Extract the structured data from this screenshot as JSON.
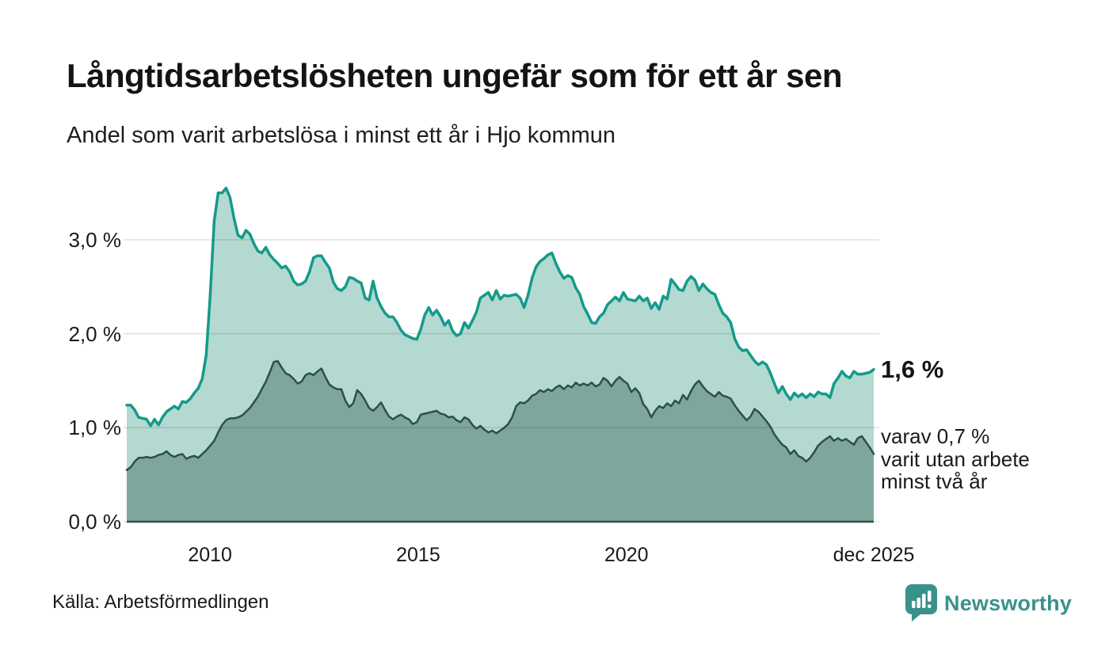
{
  "header": {
    "title": "Långtidsarbetslösheten ungefär som för ett år sen",
    "subtitle": "Andel som varit arbetslösa i minst ett år i Hjo kommun"
  },
  "chart_data": {
    "type": "area",
    "title": "Långtidsarbetslösheten ungefär som för ett år sen",
    "subtitle": "Andel som varit arbetslösa i minst ett år i Hjo kommun",
    "unit": "%",
    "x_start_year": 2008.0,
    "x_end_year": 2025.94,
    "ylim": [
      0,
      3.7
    ],
    "grid": true,
    "x_ticks": [
      {
        "label": "2010",
        "year": 2010
      },
      {
        "label": "2015",
        "year": 2015
      },
      {
        "label": "2020",
        "year": 2020
      },
      {
        "label": "dec 2025",
        "year": 2025.94
      }
    ],
    "y_ticks": [
      {
        "label": "3,0 %",
        "value": 3.0
      },
      {
        "label": "2,0 %",
        "value": 2.0
      },
      {
        "label": "1,0 %",
        "value": 1.0
      },
      {
        "label": "0,0 %",
        "value": 0.0
      }
    ],
    "series": [
      {
        "name": "Andel som varit arbetslösa i minst ett år",
        "line_color": "#149a8b",
        "fill_color": "#b4d9d0",
        "line_width": 3.5,
        "latest_value": 1.6,
        "values": [
          1.24,
          1.24,
          1.19,
          1.11,
          1.1,
          1.09,
          1.02,
          1.09,
          1.03,
          1.11,
          1.17,
          1.2,
          1.23,
          1.2,
          1.28,
          1.27,
          1.31,
          1.37,
          1.42,
          1.52,
          1.77,
          2.4,
          3.2,
          3.5,
          3.5,
          3.55,
          3.45,
          3.23,
          3.05,
          3.02,
          3.1,
          3.06,
          2.96,
          2.88,
          2.86,
          2.92,
          2.84,
          2.79,
          2.75,
          2.7,
          2.72,
          2.66,
          2.56,
          2.52,
          2.53,
          2.56,
          2.66,
          2.81,
          2.83,
          2.83,
          2.76,
          2.7,
          2.55,
          2.48,
          2.46,
          2.5,
          2.6,
          2.59,
          2.56,
          2.54,
          2.38,
          2.36,
          2.56,
          2.38,
          2.29,
          2.22,
          2.18,
          2.18,
          2.12,
          2.04,
          1.99,
          1.97,
          1.95,
          1.94,
          2.05,
          2.2,
          2.28,
          2.2,
          2.25,
          2.18,
          2.09,
          2.14,
          2.03,
          1.98,
          2.0,
          2.12,
          2.06,
          2.14,
          2.23,
          2.38,
          2.41,
          2.44,
          2.36,
          2.46,
          2.37,
          2.41,
          2.4,
          2.41,
          2.42,
          2.38,
          2.28,
          2.41,
          2.59,
          2.71,
          2.77,
          2.8,
          2.84,
          2.86,
          2.75,
          2.66,
          2.59,
          2.62,
          2.6,
          2.49,
          2.42,
          2.29,
          2.21,
          2.12,
          2.11,
          2.18,
          2.22,
          2.31,
          2.35,
          2.39,
          2.35,
          2.44,
          2.37,
          2.36,
          2.35,
          2.4,
          2.35,
          2.38,
          2.27,
          2.33,
          2.26,
          2.4,
          2.37,
          2.58,
          2.53,
          2.47,
          2.46,
          2.56,
          2.61,
          2.57,
          2.46,
          2.53,
          2.48,
          2.44,
          2.42,
          2.31,
          2.22,
          2.18,
          2.12,
          1.95,
          1.86,
          1.82,
          1.83,
          1.77,
          1.71,
          1.67,
          1.7,
          1.67,
          1.58,
          1.47,
          1.37,
          1.44,
          1.36,
          1.3,
          1.37,
          1.33,
          1.36,
          1.32,
          1.36,
          1.33,
          1.38,
          1.36,
          1.36,
          1.32,
          1.47,
          1.53,
          1.6,
          1.55,
          1.53,
          1.6,
          1.57,
          1.57,
          1.58,
          1.59,
          1.62
        ]
      },
      {
        "name": "Andel som varit utan arbete minst två år",
        "line_color": "#2e4f47",
        "fill_color": "#7fa69c",
        "line_width": 2.5,
        "latest_value": 0.7,
        "values": [
          0.55,
          0.58,
          0.64,
          0.68,
          0.68,
          0.69,
          0.68,
          0.69,
          0.71,
          0.72,
          0.75,
          0.71,
          0.69,
          0.71,
          0.72,
          0.67,
          0.69,
          0.7,
          0.68,
          0.72,
          0.76,
          0.81,
          0.86,
          0.95,
          1.03,
          1.08,
          1.1,
          1.1,
          1.11,
          1.13,
          1.17,
          1.21,
          1.27,
          1.33,
          1.41,
          1.49,
          1.59,
          1.7,
          1.71,
          1.64,
          1.58,
          1.56,
          1.52,
          1.47,
          1.49,
          1.56,
          1.58,
          1.56,
          1.6,
          1.63,
          1.54,
          1.46,
          1.43,
          1.41,
          1.41,
          1.29,
          1.22,
          1.26,
          1.4,
          1.36,
          1.29,
          1.21,
          1.18,
          1.22,
          1.27,
          1.19,
          1.12,
          1.09,
          1.12,
          1.14,
          1.11,
          1.09,
          1.04,
          1.06,
          1.14,
          1.15,
          1.16,
          1.17,
          1.18,
          1.15,
          1.14,
          1.11,
          1.12,
          1.08,
          1.06,
          1.11,
          1.09,
          1.03,
          0.99,
          1.02,
          0.98,
          0.95,
          0.97,
          0.94,
          0.97,
          1.0,
          1.04,
          1.11,
          1.23,
          1.27,
          1.26,
          1.29,
          1.34,
          1.36,
          1.4,
          1.38,
          1.41,
          1.39,
          1.43,
          1.45,
          1.41,
          1.45,
          1.43,
          1.48,
          1.45,
          1.47,
          1.45,
          1.48,
          1.44,
          1.46,
          1.53,
          1.5,
          1.44,
          1.5,
          1.54,
          1.5,
          1.47,
          1.38,
          1.42,
          1.37,
          1.25,
          1.2,
          1.11,
          1.18,
          1.23,
          1.21,
          1.26,
          1.23,
          1.29,
          1.26,
          1.35,
          1.3,
          1.39,
          1.46,
          1.5,
          1.44,
          1.39,
          1.36,
          1.33,
          1.38,
          1.34,
          1.33,
          1.31,
          1.24,
          1.18,
          1.13,
          1.08,
          1.12,
          1.2,
          1.17,
          1.12,
          1.07,
          1.01,
          0.93,
          0.87,
          0.82,
          0.79,
          0.72,
          0.76,
          0.7,
          0.68,
          0.64,
          0.68,
          0.74,
          0.81,
          0.85,
          0.88,
          0.91,
          0.86,
          0.89,
          0.86,
          0.88,
          0.85,
          0.82,
          0.89,
          0.91,
          0.85,
          0.79,
          0.72
        ]
      }
    ],
    "annotations": {
      "latest_total": "1,6 %",
      "sub_lines": [
        "varav 0,7 %",
        "varit utan arbete",
        "minst två år"
      ]
    },
    "colors": {
      "gridline": "#e3e3e3",
      "text": "#1a1a1a",
      "brand_teal": "#3a918c"
    }
  },
  "footer": {
    "source": "Källa: Arbetsförmedlingen",
    "brand": "Newsworthy"
  }
}
